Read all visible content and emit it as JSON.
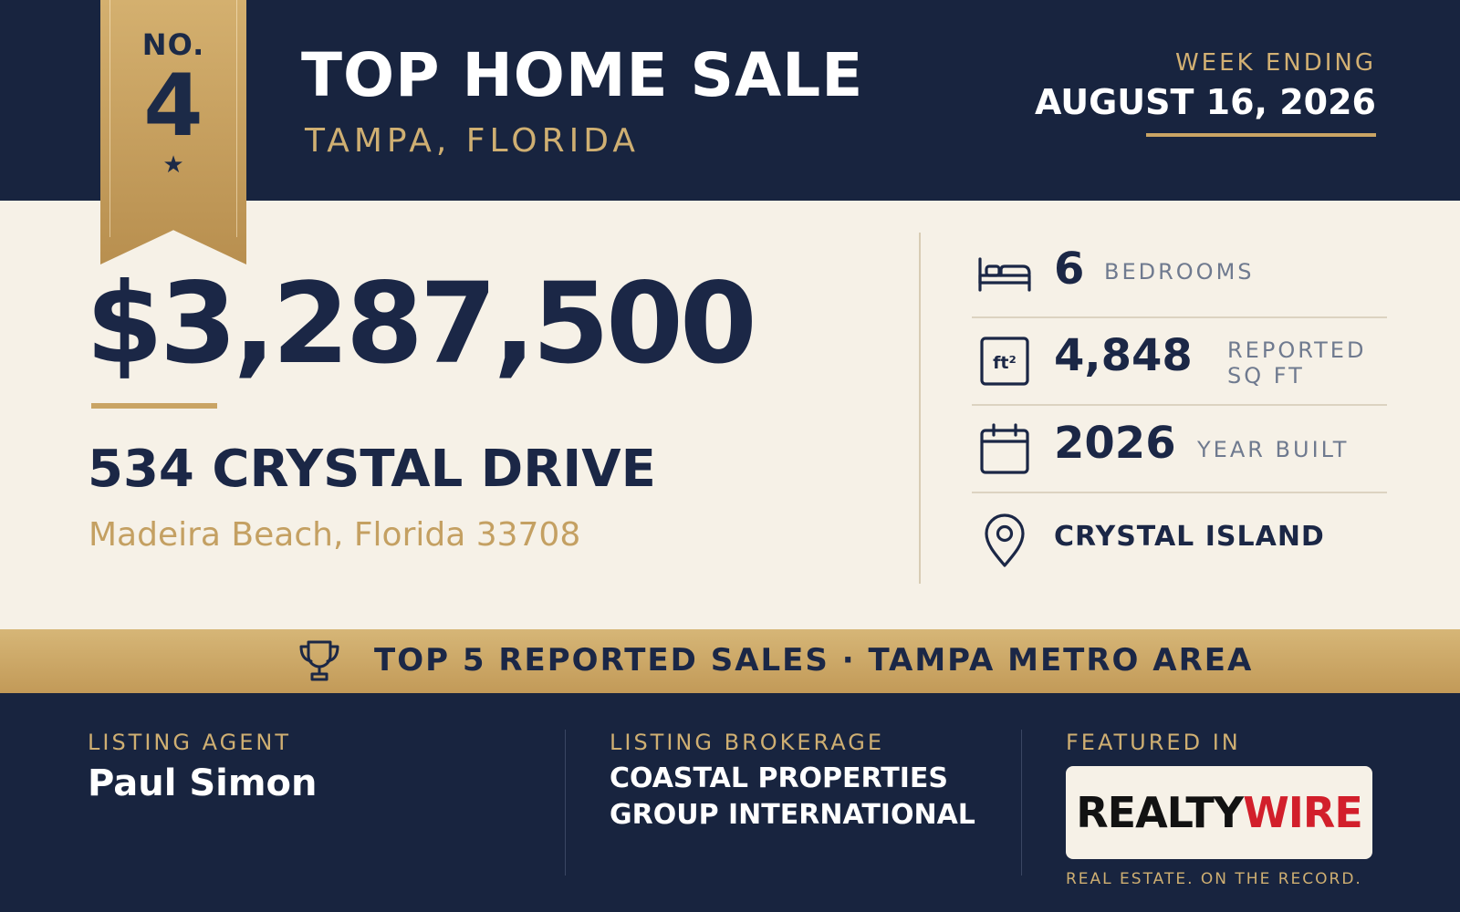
{
  "header": {
    "ribbon": {
      "no_label": "NO.",
      "rank": "4",
      "star": "★"
    },
    "title": "TOP HOME SALE",
    "subtitle": "TAMPA, FLORIDA",
    "week_ending_label": "WEEK ENDING",
    "week_ending_date": "AUGUST 16, 2026"
  },
  "property": {
    "price": "$3,287,500",
    "address": "534 CRYSTAL DRIVE",
    "city_state_zip": "Madeira Beach, Florida 33708"
  },
  "stats": [
    {
      "icon": "bed-icon",
      "value": "6",
      "label": "BEDROOMS"
    },
    {
      "icon": "sqft-icon",
      "value": "4,848",
      "label_line1": "REPORTED",
      "label_line2": "SQ FT"
    },
    {
      "icon": "calendar-icon",
      "value": "2026",
      "label": "YEAR BUILT"
    },
    {
      "icon": "map-pin-icon",
      "label": "CRYSTAL ISLAND"
    }
  ],
  "sqft_icon_text": "ft²",
  "banner": {
    "icon": "trophy-icon",
    "text": "TOP 5 REPORTED SALES · TAMPA METRO AREA"
  },
  "footer": {
    "agent_label": "LISTING AGENT",
    "agent_name": "Paul Simon",
    "brokerage_label": "LISTING BROKERAGE",
    "brokerage_line1": "COASTAL PROPERTIES",
    "brokerage_line2": "GROUP INTERNATIONAL",
    "featured_label": "FEATURED IN",
    "logo_part1": "REALTY",
    "logo_part2": "WIRE",
    "tagline": "REAL ESTATE. ON THE RECORD."
  },
  "colors": {
    "navy": "#18243f",
    "gold": "#c9a464",
    "cream": "#f6f1e7",
    "logo_red": "#d21f2b"
  }
}
